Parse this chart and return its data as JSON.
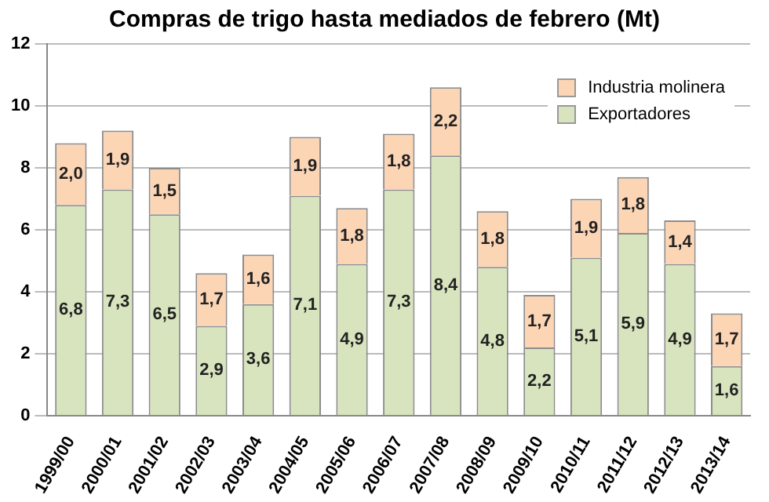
{
  "chart_data": {
    "type": "bar",
    "title": "Compras de trigo hasta mediados de febrero (Mt)",
    "categories": [
      "1999/00",
      "2000/01",
      "2001/02",
      "2002/03",
      "2003/04",
      "2004/05",
      "2005/06",
      "2006/07",
      "2007/08",
      "2008/09",
      "2009/10",
      "2010/11",
      "2011/12",
      "2012/13",
      "2013/14"
    ],
    "series": [
      {
        "name": "Exportadores",
        "color": "#d7e4bd",
        "values": [
          6.8,
          7.3,
          6.5,
          2.9,
          3.6,
          7.1,
          4.9,
          7.3,
          8.4,
          4.8,
          2.2,
          5.1,
          5.9,
          4.9,
          1.6
        ],
        "value_labels": [
          "6,8",
          "7,3",
          "6,5",
          "2,9",
          "3,6",
          "7,1",
          "4,9",
          "7,3",
          "8,4",
          "4,8",
          "2,2",
          "5,1",
          "5,9",
          "4,9",
          "1,6"
        ]
      },
      {
        "name": "Industria molinera",
        "color": "#fcd5b5",
        "values": [
          2.0,
          1.9,
          1.5,
          1.7,
          1.6,
          1.9,
          1.8,
          1.8,
          2.2,
          1.8,
          1.7,
          1.9,
          1.8,
          1.4,
          1.7
        ],
        "value_labels": [
          "2,0",
          "1,9",
          "1,5",
          "1,7",
          "1,6",
          "1,9",
          "1,8",
          "1,8",
          "2,2",
          "1,8",
          "1,7",
          "1,9",
          "1,8",
          "1,4",
          "1,7"
        ]
      }
    ],
    "stacked": true,
    "ylim": [
      0,
      12
    ],
    "yticks": [
      0,
      2,
      4,
      6,
      8,
      10,
      12
    ],
    "grid": "y",
    "legend": "top right"
  }
}
